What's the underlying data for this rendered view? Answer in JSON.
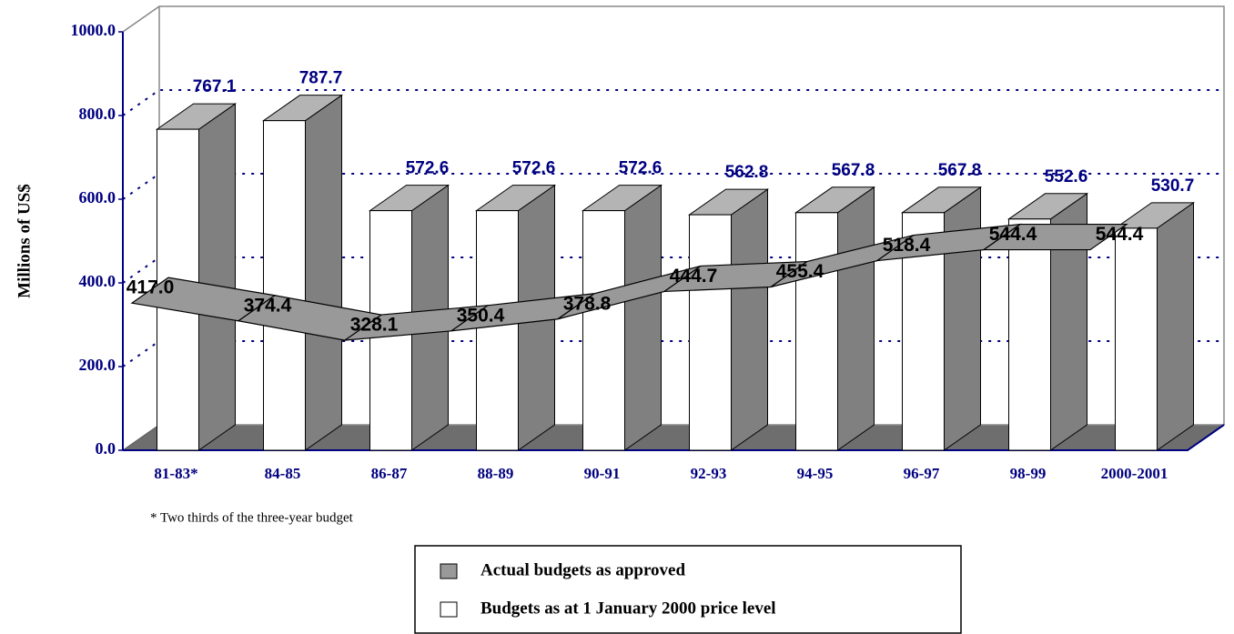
{
  "chart_data": {
    "type": "bar3d",
    "y_label": "Millions of US$",
    "footnote": "* Two thirds of the three-year budget",
    "categories": [
      "81-83*",
      "84-85",
      "86-87",
      "88-89",
      "90-91",
      "92-93",
      "94-95",
      "96-97",
      "98-99",
      "2000-2001"
    ],
    "series": [
      {
        "name": "Actual budgets as approved",
        "type": "ribbon",
        "color": "#999999",
        "values": [
          417.0,
          374.4,
          328.1,
          350.4,
          378.8,
          444.7,
          455.4,
          518.4,
          544.4,
          544.4
        ],
        "value_labels": [
          "417.0",
          "374.4",
          "328.1",
          "350.4",
          "378.8",
          "444.7",
          "455.4",
          "518.4",
          "544.4",
          "544.4"
        ]
      },
      {
        "name": "Budgets as at 1 January 2000 price level",
        "type": "bar",
        "color": "#ffffff",
        "values": [
          767.1,
          787.7,
          572.6,
          572.6,
          572.6,
          562.8,
          567.8,
          567.8,
          552.6,
          530.7
        ],
        "value_labels": [
          "767.1",
          "787.7",
          "572.6",
          "572.6",
          "572.6",
          "562.8",
          "567.8",
          "567.8",
          "552.6",
          "530.7"
        ]
      }
    ],
    "ylim": [
      0,
      1000
    ],
    "yticks": [
      {
        "value": 0,
        "label": "0.0"
      },
      {
        "value": 200,
        "label": "200.0"
      },
      {
        "value": 400,
        "label": "400.0"
      },
      {
        "value": 600,
        "label": "600.0"
      },
      {
        "value": 800,
        "label": "800.0"
      },
      {
        "value": 1000,
        "label": "1000.0"
      }
    ],
    "grid": true
  }
}
